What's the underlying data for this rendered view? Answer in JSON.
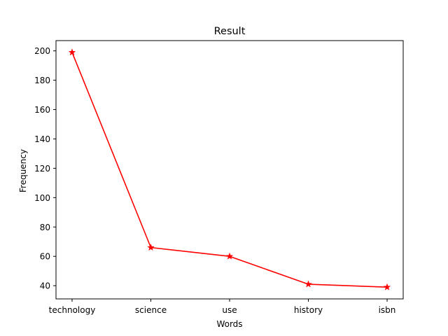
{
  "chart_data": {
    "type": "line",
    "title": "Result",
    "xlabel": "Words",
    "ylabel": "Frequency",
    "categories": [
      "technology",
      "science",
      "use",
      "history",
      "isbn"
    ],
    "series": [
      {
        "values": [
          199,
          66,
          60,
          41,
          39
        ],
        "color": "#ff0000",
        "marker": "star"
      }
    ],
    "yticks": [
      40,
      60,
      80,
      100,
      120,
      140,
      160,
      180,
      200
    ],
    "ylim": [
      31,
      207
    ],
    "grid": false,
    "legend": "none"
  }
}
